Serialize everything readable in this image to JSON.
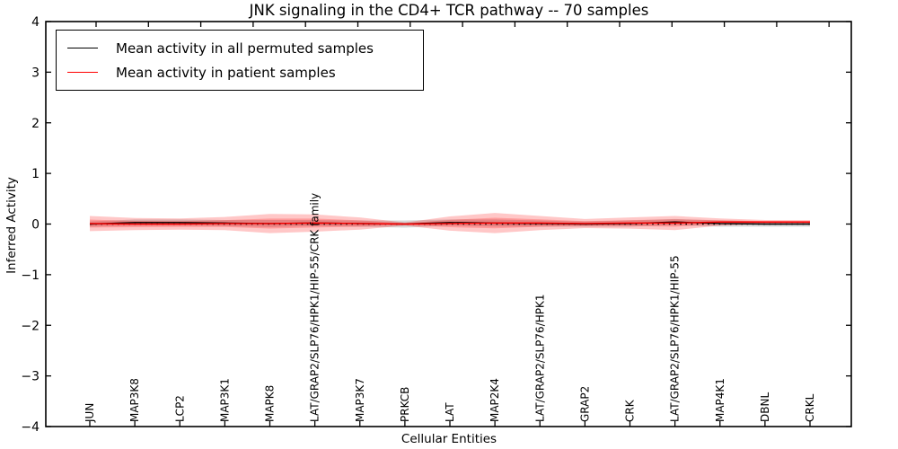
{
  "figure": {
    "title": "JNK signaling in the CD4+ TCR pathway -- 70 samples"
  },
  "chart_data": {
    "type": "line",
    "title": "JNK signaling in the CD4+ TCR pathway -- 70 samples",
    "xlabel": "Cellular Entities",
    "ylabel": "Inferred Activity",
    "ylim": [
      -4,
      4
    ],
    "ytick_values": [
      4,
      3,
      2,
      1,
      0,
      -1,
      -2,
      -3,
      -4
    ],
    "ytick_labels": [
      "4",
      "3",
      "2",
      "1",
      "0",
      "−1",
      "−2",
      "−3",
      "−4"
    ],
    "grid": false,
    "legend_position": "upper left",
    "categories": [
      "JUN",
      "MAP3K8",
      "LCP2",
      "MAP3K1",
      "MAPK8",
      "LAT/GRAP2/SLP76/HPK1/HIP-55/CRK family",
      "MAP3K7",
      "PRKCB",
      "LAT",
      "MAP2K4",
      "LAT/GRAP2/SLP76/HPK1",
      "GRAP2",
      "CRK",
      "LAT/GRAP2/SLP76/HPK1/HIP-55",
      "MAP4K1",
      "DBNL",
      "CRKL"
    ],
    "reference_line": {
      "value": 0,
      "style": "dotted",
      "color": "#000000"
    },
    "series": [
      {
        "name": "Mean activity in all permuted samples",
        "color": "#000000",
        "style": "solid",
        "values": [
          0.0,
          0.03,
          0.03,
          0.02,
          0.01,
          0.02,
          0.01,
          0.0,
          0.03,
          0.02,
          0.01,
          0.0,
          0.01,
          0.04,
          0.01,
          0.0,
          0.0
        ],
        "band_color": "#999999",
        "band_opacity": 0.38,
        "band_half_widths": [
          0.05,
          0.06,
          0.06,
          0.06,
          0.07,
          0.06,
          0.06,
          0.07,
          0.06,
          0.07,
          0.06,
          0.05,
          0.06,
          0.06,
          0.06,
          0.05,
          0.05
        ]
      },
      {
        "name": "Mean activity in patient samples",
        "color": "#ff0000",
        "style": "solid",
        "values": [
          0.01,
          0.0,
          0.0,
          0.01,
          0.01,
          0.02,
          0.01,
          0.0,
          0.01,
          0.02,
          0.02,
          0.01,
          0.02,
          0.02,
          0.04,
          0.04,
          0.04
        ],
        "band_color": "#ff0000",
        "band_opacity": 0.22,
        "inner_band_ratio": 0.52,
        "band_half_widths": [
          0.15,
          0.12,
          0.11,
          0.13,
          0.19,
          0.17,
          0.12,
          0.03,
          0.14,
          0.2,
          0.14,
          0.09,
          0.11,
          0.14,
          0.07,
          0.04,
          0.04
        ]
      }
    ],
    "legend": {
      "entries": [
        {
          "label": "Mean activity in all permuted samples",
          "color": "#000000"
        },
        {
          "label": "Mean activity in patient samples",
          "color": "#ff0000"
        }
      ]
    }
  }
}
